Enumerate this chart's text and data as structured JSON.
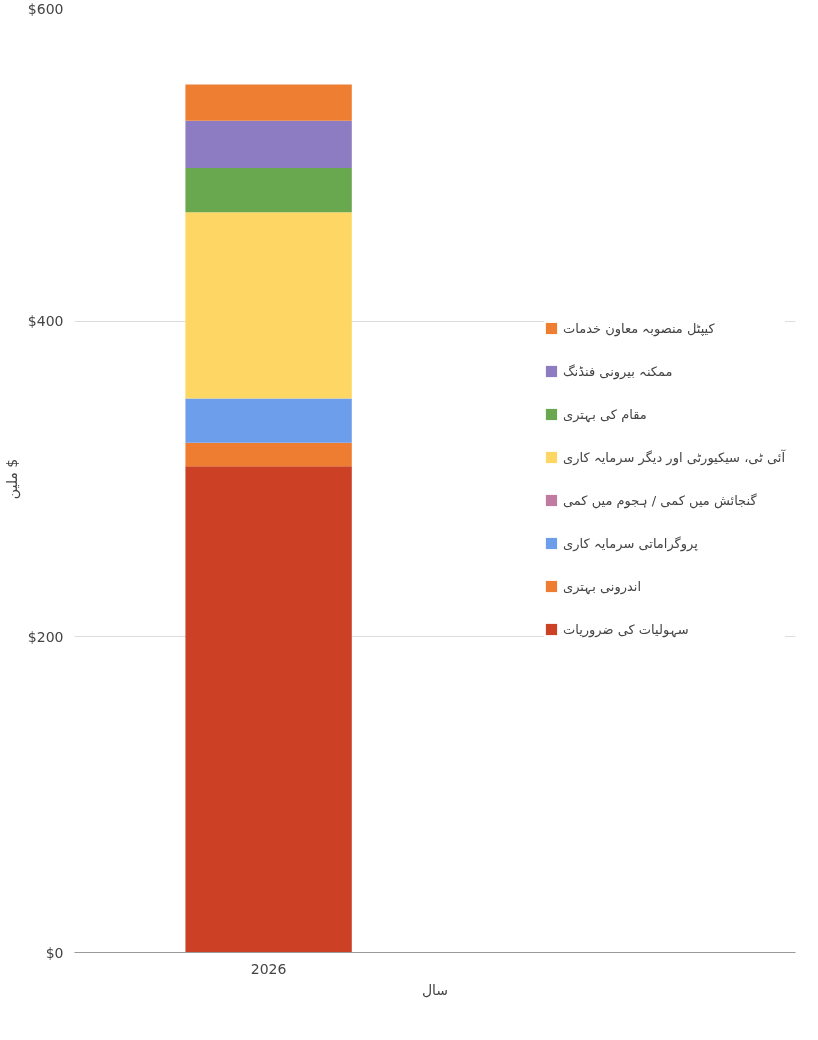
{
  "chart_data": {
    "type": "bar",
    "stacked": true,
    "xlabel": "سال",
    "ylabel": "ملین $",
    "categories": [
      "2026"
    ],
    "series": [
      {
        "name": "سہولیات کی ضروریات",
        "color": "#cc4125",
        "values": [
          308
        ]
      },
      {
        "name": "اندرونی بہتری",
        "color": "#ef7d31",
        "values": [
          15
        ]
      },
      {
        "name": "پروگراماتی سرمایہ کاری",
        "color": "#6d9eeb",
        "values": [
          28
        ]
      },
      {
        "name": "گنجائش میں کمی / ہجوم میں کمی",
        "color": "#c27ba0",
        "values": [
          0
        ]
      },
      {
        "name": "آئی ٹی، سیکیورٹی اور دیگر سرمایہ کاری",
        "color": "#fdd663",
        "values": [
          118
        ]
      },
      {
        "name": "مقام کی بہتری",
        "color": "#6aa84f",
        "values": [
          28
        ]
      },
      {
        "name": "ممکنہ بیرونی فنڈنگ",
        "color": "#8e7cc3",
        "values": [
          30
        ]
      },
      {
        "name": "کیپٹل منصوبہ معاون خدمات",
        "color": "#ee7e32",
        "values": [
          23
        ]
      }
    ],
    "ylim": [
      0,
      600
    ],
    "yticks": [
      {
        "value": 0,
        "label": "$0"
      },
      {
        "value": 200,
        "label": "$200"
      },
      {
        "value": 400,
        "label": "$400"
      },
      {
        "value": 600,
        "label": "$600"
      }
    ],
    "grid": "y",
    "legend": "right"
  }
}
